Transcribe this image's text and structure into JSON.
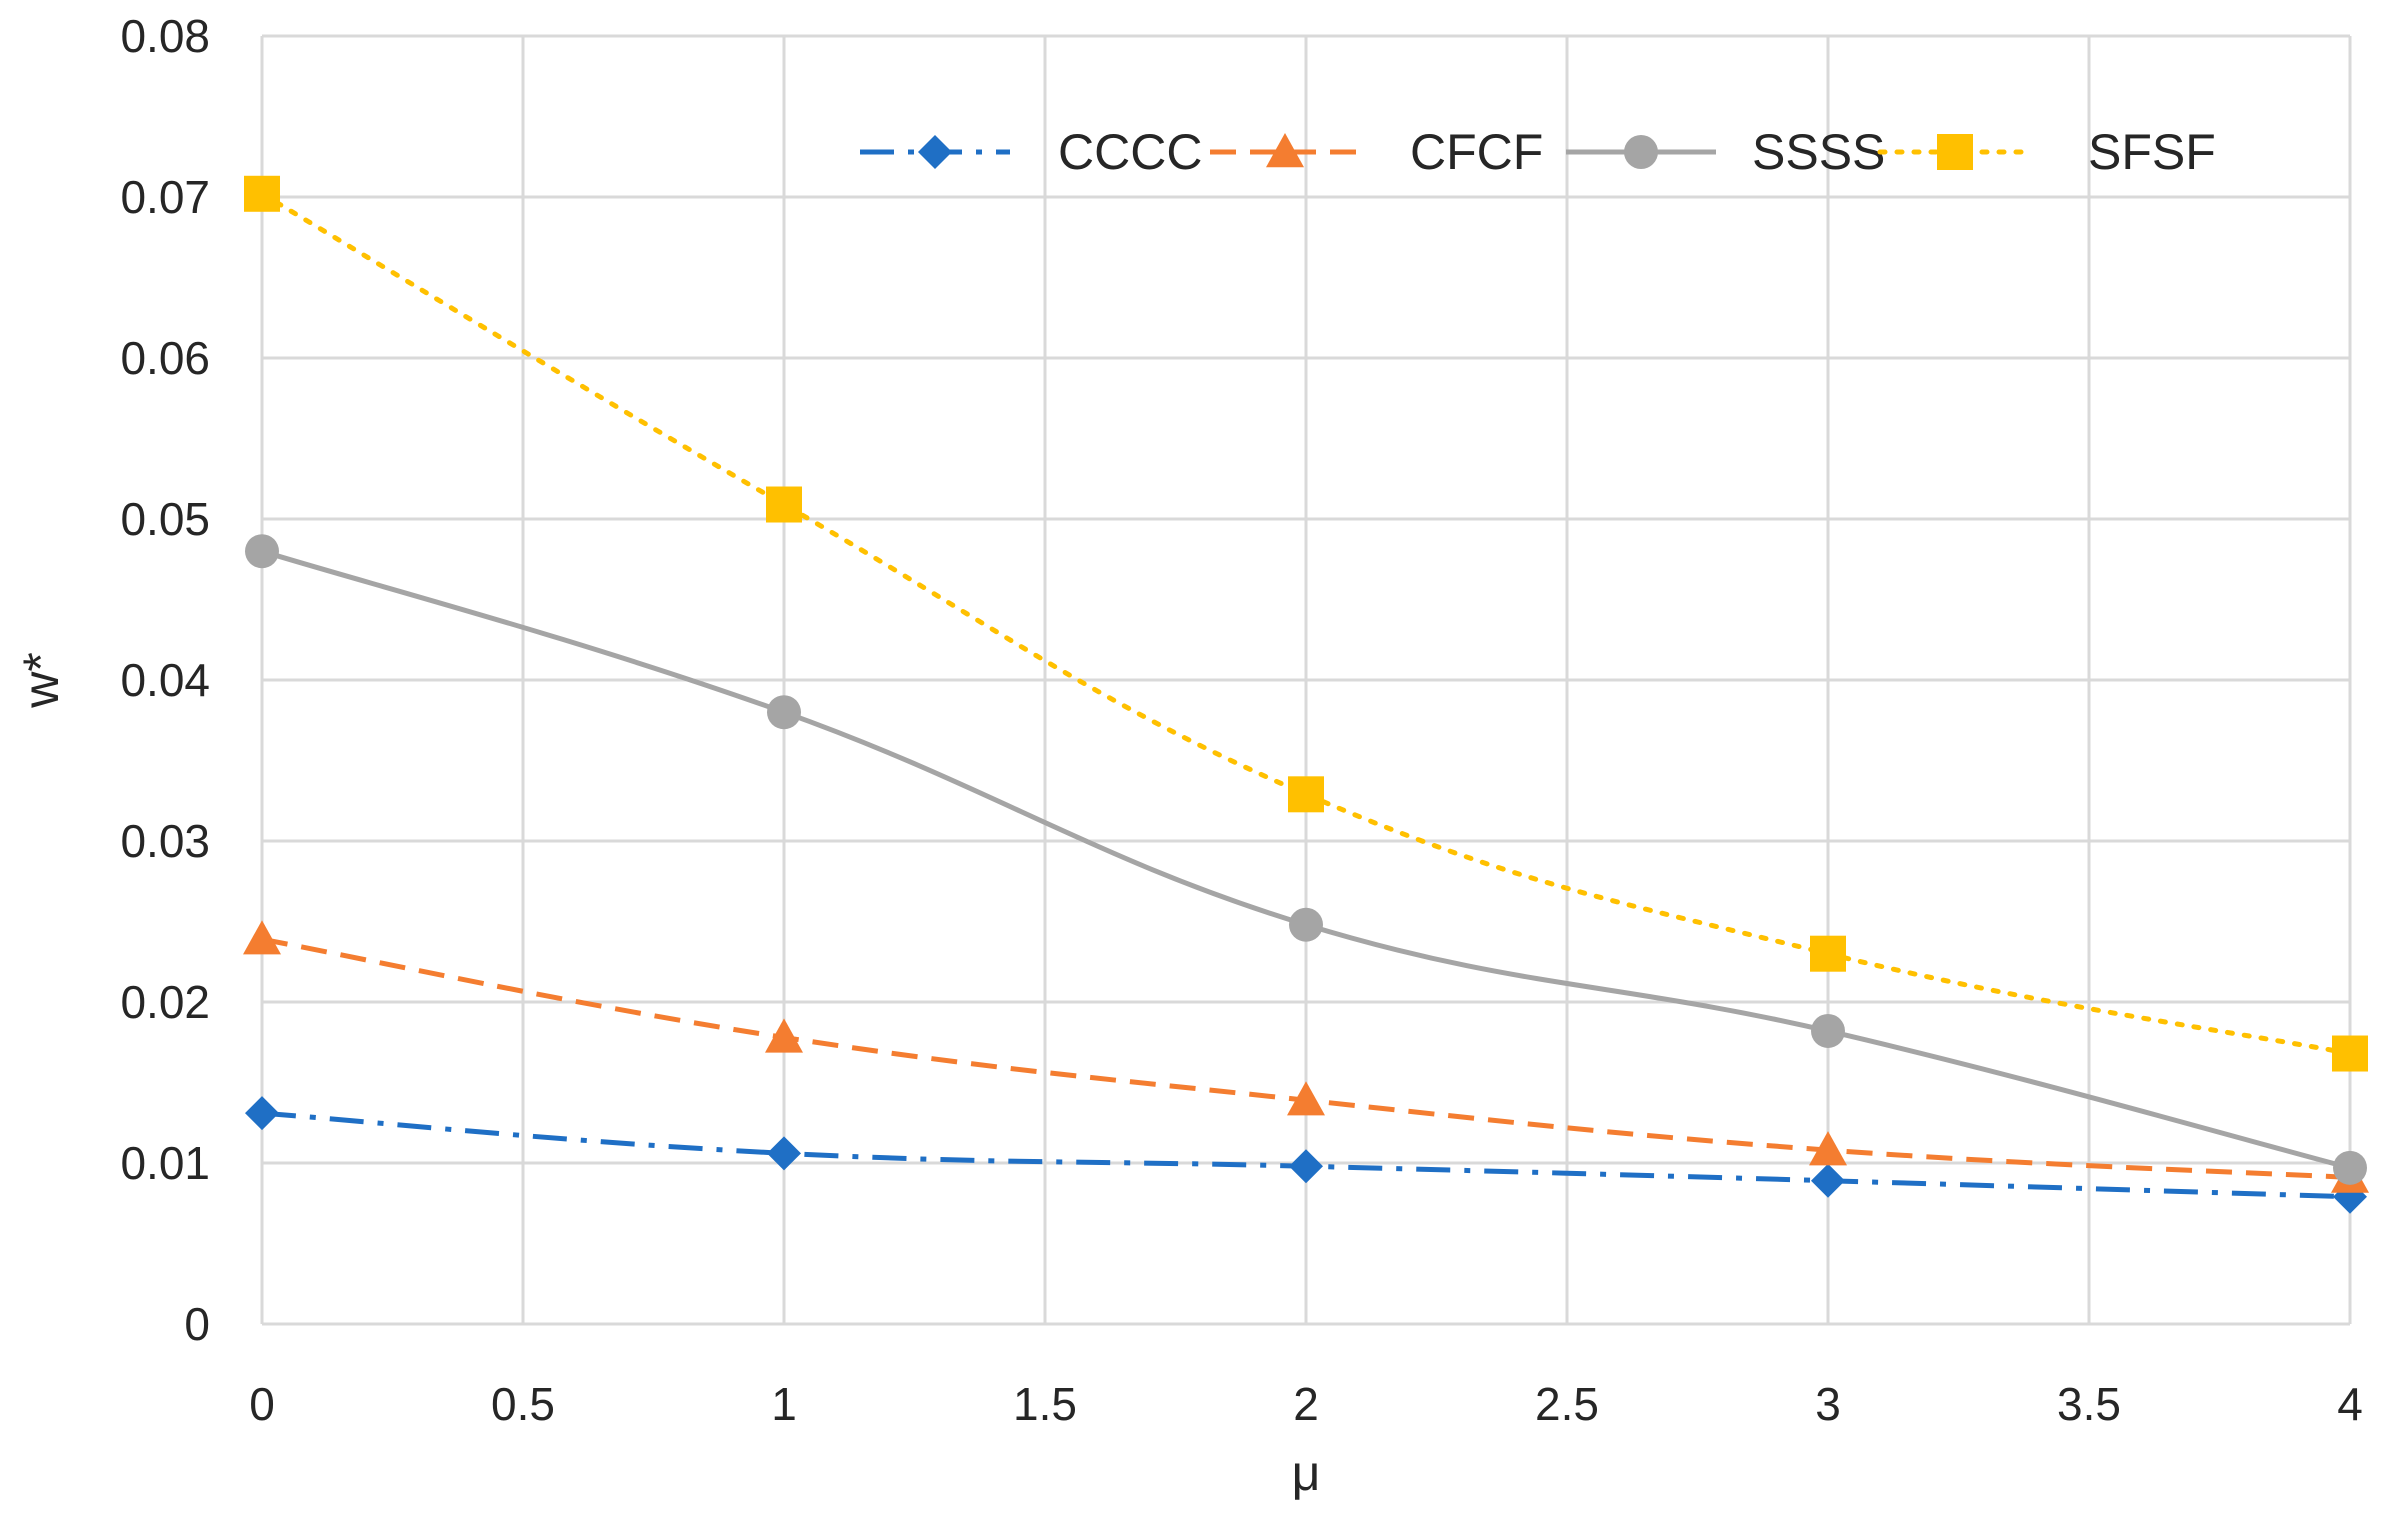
{
  "chart_data": {
    "type": "line",
    "title": "",
    "xlabel": "μ",
    "ylabel": "w*",
    "xlim": [
      0,
      4
    ],
    "ylim": [
      0,
      0.08
    ],
    "grid": true,
    "legend_position": "top-right",
    "x_ticks": [
      0,
      0.5,
      1,
      1.5,
      2,
      2.5,
      3,
      3.5,
      4
    ],
    "x_tick_labels": [
      "0",
      "0.5",
      "1",
      "1.5",
      "2",
      "2.5",
      "3",
      "3.5",
      "4"
    ],
    "y_ticks": [
      0,
      0.01,
      0.02,
      0.03,
      0.04,
      0.05,
      0.06,
      0.07,
      0.08
    ],
    "y_tick_labels": [
      "0",
      "0.01",
      "0.02",
      "0.03",
      "0.04",
      "0.05",
      "0.06",
      "0.07",
      "0.08"
    ],
    "x": [
      0,
      1,
      2,
      3,
      4
    ],
    "series": [
      {
        "name": "CCCC",
        "values": [
          0.0131,
          0.0106,
          0.0098,
          0.0089,
          0.0079
        ],
        "color": "#1f6fc5",
        "dash": "dashdot",
        "marker": "diamond"
      },
      {
        "name": "CFCF",
        "values": [
          0.0239,
          0.0178,
          0.0139,
          0.0108,
          0.0091
        ],
        "color": "#f47d30",
        "dash": "dash",
        "marker": "triangle"
      },
      {
        "name": "SSSS",
        "values": [
          0.048,
          0.038,
          0.0248,
          0.0182,
          0.0097
        ],
        "color": "#a5a5a5",
        "dash": "solid",
        "marker": "circle"
      },
      {
        "name": "SFSF",
        "values": [
          0.0702,
          0.0509,
          0.0329,
          0.023,
          0.0168
        ],
        "color": "#ffc000",
        "dash": "dot",
        "marker": "square"
      }
    ]
  }
}
